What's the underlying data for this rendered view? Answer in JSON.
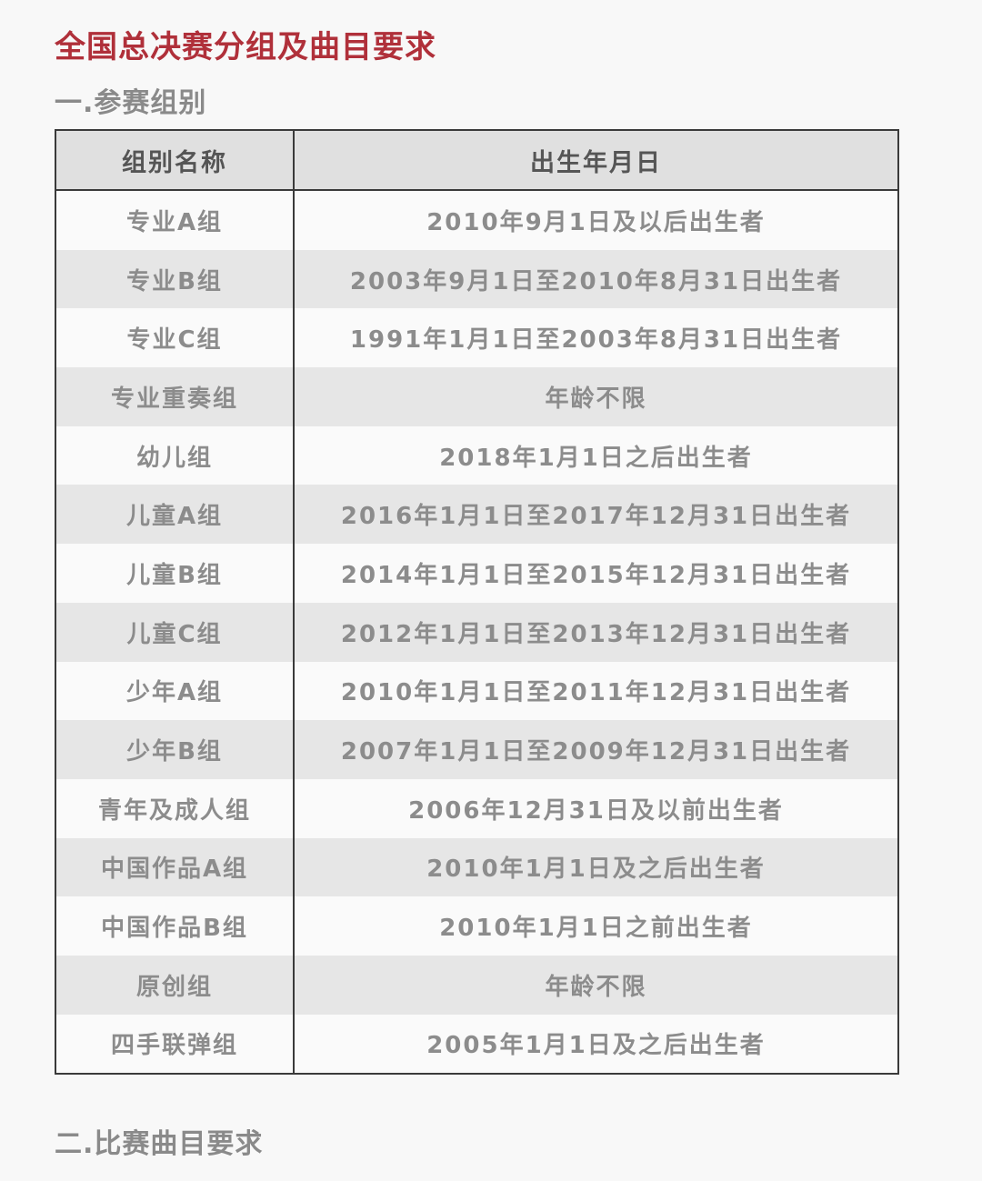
{
  "title": "全国总决赛分组及曲目要求",
  "section1": "一.参赛组别",
  "section2": "二.比赛曲目要求",
  "table": {
    "headers": [
      "组别名称",
      "出生年月日"
    ],
    "rows": [
      [
        "专业A组",
        "2010年9月1日及以后出生者"
      ],
      [
        "专业B组",
        "2003年9月1日至2010年8月31日出生者"
      ],
      [
        "专业C组",
        "1991年1月1日至2003年8月31日出生者"
      ],
      [
        "专业重奏组",
        "年龄不限"
      ],
      [
        "幼儿组",
        "2018年1月1日之后出生者"
      ],
      [
        "儿童A组",
        "2016年1月1日至2017年12月31日出生者"
      ],
      [
        "儿童B组",
        "2014年1月1日至2015年12月31日出生者"
      ],
      [
        "儿童C组",
        "2012年1月1日至2013年12月31日出生者"
      ],
      [
        "少年A组",
        "2010年1月1日至2011年12月31日出生者"
      ],
      [
        "少年B组",
        "2007年1月1日至2009年12月31日出生者"
      ],
      [
        "青年及成人组",
        "2006年12月31日及以前出生者"
      ],
      [
        "中国作品A组",
        "2010年1月1日及之后出生者"
      ],
      [
        "中国作品B组",
        "2010年1月1日之前出生者"
      ],
      [
        "原创组",
        "年龄不限"
      ],
      [
        "四手联弹组",
        "2005年1月1日及之后出生者"
      ]
    ]
  }
}
